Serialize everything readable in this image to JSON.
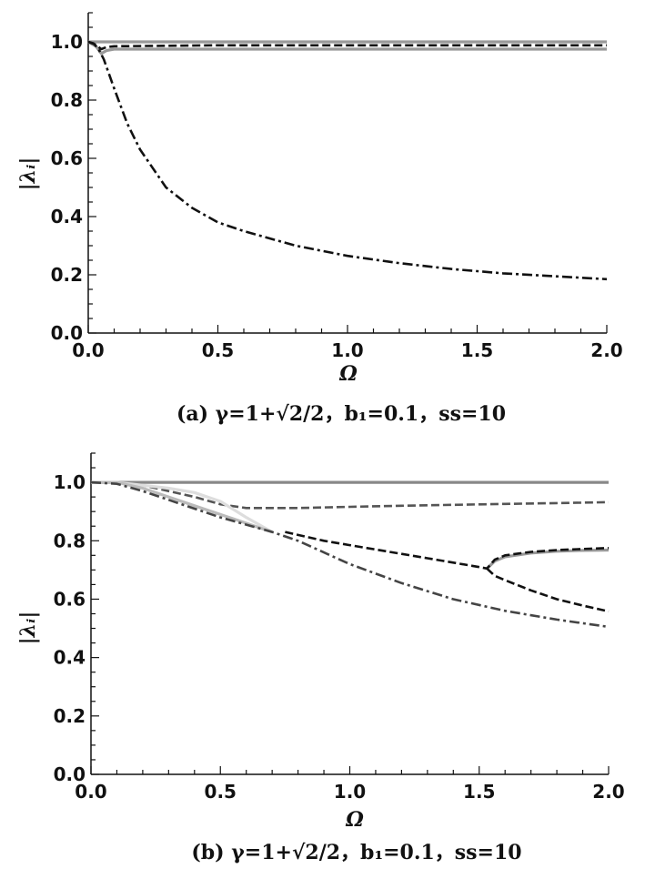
{
  "chart_data": [
    {
      "type": "line",
      "caption": "(a) γ=1+√2/2，b₁=0.1，ss=10",
      "xlabel": "Ω",
      "ylabel": "|λᵢ|",
      "xlim": [
        0,
        2
      ],
      "ylim": [
        0,
        1.1
      ],
      "xticks": [
        "0.0",
        "0.5",
        "1.0",
        "1.5",
        "2.0"
      ],
      "yticks": [
        "0.0",
        "0.2",
        "0.4",
        "0.6",
        "0.8",
        "1.0"
      ],
      "grid": false,
      "series": [
        {
          "style": "solid",
          "color": "#999999",
          "x": [
            0,
            0.5,
            1.0,
            1.5,
            2.0
          ],
          "y": [
            1.0,
            1.0,
            1.0,
            1.0,
            1.0
          ]
        },
        {
          "style": "solid",
          "color": "#999999",
          "x": [
            0,
            0.03,
            0.05,
            0.07,
            0.1,
            0.5,
            1.0,
            1.5,
            2.0
          ],
          "y": [
            1.0,
            0.985,
            0.96,
            0.97,
            0.975,
            0.975,
            0.975,
            0.975,
            0.975
          ]
        },
        {
          "style": "dashed",
          "color": "#111111",
          "x": [
            0,
            0.03,
            0.05,
            0.07,
            0.1,
            0.5,
            1.0,
            1.5,
            2.0
          ],
          "y": [
            1.0,
            0.99,
            0.975,
            0.982,
            0.985,
            0.988,
            0.988,
            0.988,
            0.988
          ]
        },
        {
          "style": "dashdot",
          "color": "#111111",
          "x": [
            0,
            0.02,
            0.04,
            0.06,
            0.08,
            0.1,
            0.15,
            0.2,
            0.3,
            0.4,
            0.5,
            0.6,
            0.8,
            1.0,
            1.2,
            1.4,
            1.6,
            1.8,
            2.0
          ],
          "y": [
            1.0,
            0.995,
            0.975,
            0.94,
            0.89,
            0.84,
            0.72,
            0.63,
            0.5,
            0.43,
            0.38,
            0.35,
            0.3,
            0.265,
            0.24,
            0.22,
            0.205,
            0.195,
            0.185
          ]
        }
      ]
    },
    {
      "type": "line",
      "caption": "(b) γ=1+√2/2，b₁=0.1，ss=10",
      "xlabel": "Ω",
      "ylabel": "|λᵢ|",
      "xlim": [
        0,
        2
      ],
      "ylim": [
        0,
        1.1
      ],
      "xticks": [
        "0.0",
        "0.5",
        "1.0",
        "1.5",
        "2.0"
      ],
      "yticks": [
        "0.0",
        "0.2",
        "0.4",
        "0.6",
        "0.8",
        "1.0"
      ],
      "grid": false,
      "series": [
        {
          "style": "solid",
          "color": "#888888",
          "x": [
            0,
            0.5,
            1.0,
            1.5,
            2.0
          ],
          "y": [
            1.0,
            1.0,
            1.0,
            1.0,
            1.0
          ]
        },
        {
          "style": "dashed",
          "color": "#555555",
          "x": [
            0,
            0.1,
            0.2,
            0.3,
            0.4,
            0.5,
            0.6,
            0.8,
            1.0,
            1.2,
            1.4,
            1.6,
            1.8,
            2.0
          ],
          "y": [
            1.0,
            1.0,
            0.99,
            0.97,
            0.95,
            0.925,
            0.912,
            0.912,
            0.916,
            0.92,
            0.923,
            0.926,
            0.929,
            0.932
          ]
        },
        {
          "style": "solid",
          "color": "#dddddd",
          "x": [
            0,
            0.1,
            0.2,
            0.3,
            0.4,
            0.5,
            0.6,
            0.7
          ],
          "y": [
            1.0,
            1.0,
            0.99,
            0.98,
            0.965,
            0.935,
            0.88,
            0.83
          ]
        },
        {
          "style": "solid",
          "color": "#bbbbbb",
          "x": [
            0,
            0.1,
            0.2,
            0.3,
            0.4,
            0.5,
            0.6,
            0.7
          ],
          "y": [
            1.0,
            1.0,
            0.98,
            0.95,
            0.92,
            0.89,
            0.86,
            0.83
          ]
        },
        {
          "style": "dashdot",
          "color": "#444444",
          "x": [
            0,
            0.1,
            0.2,
            0.3,
            0.4,
            0.5,
            0.6,
            0.7,
            0.8,
            1.0,
            1.2,
            1.4,
            1.6,
            1.8,
            2.0
          ],
          "y": [
            1.0,
            0.995,
            0.97,
            0.94,
            0.91,
            0.88,
            0.855,
            0.83,
            0.8,
            0.72,
            0.655,
            0.6,
            0.56,
            0.53,
            0.505
          ]
        },
        {
          "style": "solid",
          "color": "#999999",
          "x": [
            1.53,
            1.56,
            1.6,
            1.7,
            1.8,
            1.9,
            2.0
          ],
          "y": [
            0.705,
            0.73,
            0.745,
            0.758,
            0.764,
            0.767,
            0.768
          ]
        },
        {
          "style": "dashed",
          "color": "#111111",
          "x": [
            0.75,
            0.8,
            0.9,
            1.0,
            1.1,
            1.2,
            1.3,
            1.4,
            1.5,
            1.53,
            1.56,
            1.6,
            1.7,
            1.8,
            1.9,
            2.0
          ],
          "y": [
            0.83,
            0.82,
            0.8,
            0.785,
            0.77,
            0.755,
            0.74,
            0.725,
            0.71,
            0.705,
            0.735,
            0.75,
            0.762,
            0.768,
            0.772,
            0.775
          ]
        },
        {
          "style": "dashed",
          "color": "#111111",
          "x": [
            1.53,
            1.56,
            1.6,
            1.7,
            1.8,
            1.9,
            2.0
          ],
          "y": [
            0.705,
            0.68,
            0.665,
            0.63,
            0.6,
            0.578,
            0.558
          ]
        }
      ]
    }
  ]
}
